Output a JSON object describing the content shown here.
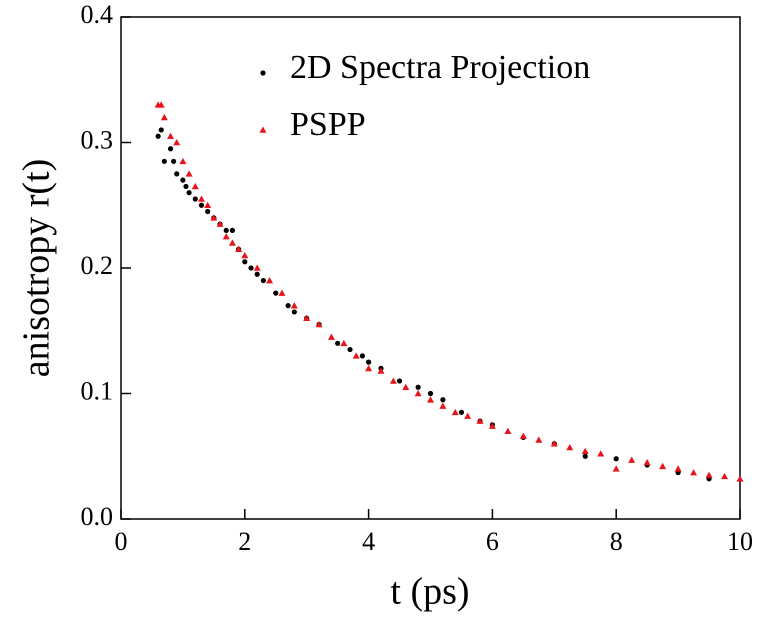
{
  "chart_data": {
    "type": "scatter",
    "x_label": "t (ps)",
    "y_label": "anisotropy r(t)",
    "xlim": [
      0,
      10
    ],
    "ylim": [
      0,
      0.4
    ],
    "xticks": [
      0,
      2,
      4,
      6,
      8,
      10
    ],
    "yticks": [
      {
        "value": 0,
        "label": "0.0"
      },
      0.1,
      0.2,
      0.3,
      0.4
    ],
    "legend": "upper right",
    "series": [
      {
        "name": "2D Spectra Projection",
        "color": "#000000",
        "marker": "circle",
        "x": [
          0.6,
          0.65,
          0.7,
          0.8,
          0.85,
          0.9,
          1.0,
          1.05,
          1.1,
          1.2,
          1.3,
          1.4,
          1.5,
          1.6,
          1.7,
          1.8,
          1.9,
          2.0,
          2.1,
          2.2,
          2.3,
          2.5,
          2.7,
          2.8,
          3.0,
          3.2,
          3.5,
          3.7,
          3.9,
          4.0,
          4.2,
          4.5,
          4.8,
          5.0,
          5.2,
          5.5,
          5.8,
          6.0,
          6.5,
          7.0,
          7.5,
          8.0,
          8.5,
          9.0,
          9.5
        ],
        "values": [
          0.305,
          0.31,
          0.285,
          0.295,
          0.285,
          0.275,
          0.27,
          0.265,
          0.26,
          0.255,
          0.25,
          0.245,
          0.24,
          0.235,
          0.23,
          0.23,
          0.215,
          0.205,
          0.2,
          0.195,
          0.19,
          0.18,
          0.17,
          0.165,
          0.16,
          0.155,
          0.14,
          0.135,
          0.13,
          0.125,
          0.12,
          0.11,
          0.105,
          0.1,
          0.095,
          0.085,
          0.078,
          0.075,
          0.065,
          0.06,
          0.05,
          0.048,
          0.043,
          0.037,
          0.032
        ]
      },
      {
        "name": "PSPP",
        "color": "#e8141c",
        "marker": "triangle",
        "x": [
          0.6,
          0.65,
          0.7,
          0.8,
          0.9,
          1.0,
          1.1,
          1.2,
          1.3,
          1.4,
          1.5,
          1.6,
          1.7,
          1.8,
          1.9,
          2.0,
          2.2,
          2.4,
          2.6,
          2.8,
          3.0,
          3.2,
          3.4,
          3.6,
          3.8,
          4.0,
          4.2,
          4.4,
          4.6,
          4.8,
          5.0,
          5.2,
          5.4,
          5.6,
          5.8,
          6.0,
          6.25,
          6.5,
          6.75,
          7.0,
          7.25,
          7.5,
          7.75,
          8.0,
          8.25,
          8.5,
          8.75,
          9.0,
          9.25,
          9.5,
          9.75,
          10.0
        ],
        "values": [
          0.33,
          0.33,
          0.32,
          0.305,
          0.3,
          0.285,
          0.275,
          0.265,
          0.255,
          0.25,
          0.24,
          0.235,
          0.225,
          0.22,
          0.215,
          0.21,
          0.2,
          0.19,
          0.18,
          0.17,
          0.16,
          0.155,
          0.145,
          0.14,
          0.13,
          0.12,
          0.118,
          0.11,
          0.105,
          0.1,
          0.095,
          0.09,
          0.085,
          0.082,
          0.078,
          0.074,
          0.07,
          0.066,
          0.063,
          0.06,
          0.057,
          0.054,
          0.052,
          0.04,
          0.047,
          0.045,
          0.042,
          0.04,
          0.037,
          0.035,
          0.034,
          0.032
        ]
      }
    ]
  }
}
